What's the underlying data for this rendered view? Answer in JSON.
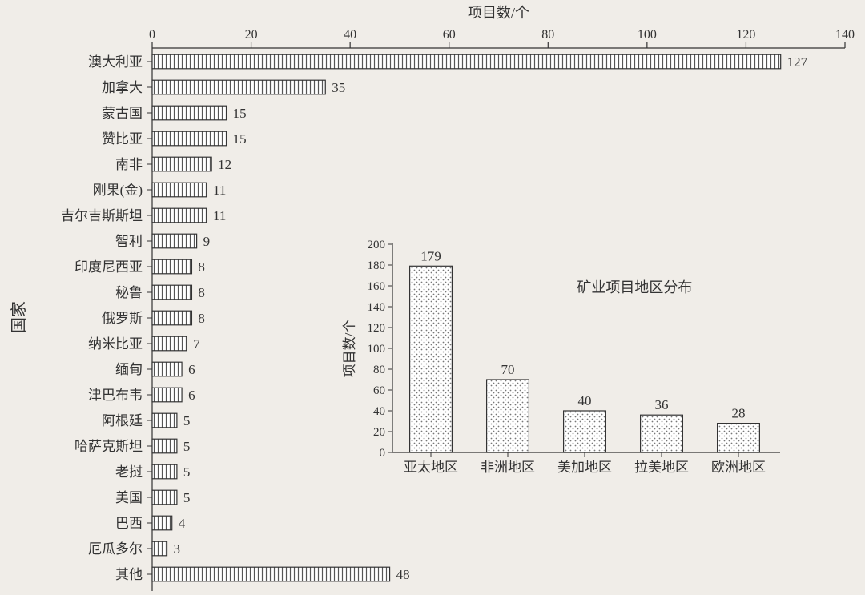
{
  "main_chart": {
    "type": "bar-horizontal",
    "xlabel": "项目数/个",
    "ylabel": "国家",
    "xlim": [
      0,
      140
    ],
    "xtick_step": 20,
    "xticks": [
      0,
      20,
      40,
      60,
      80,
      100,
      120,
      140
    ],
    "categories": [
      "澳大利亚",
      "加拿大",
      "蒙古国",
      "赞比亚",
      "南非",
      "刚果(金)",
      "吉尔吉斯斯坦",
      "智利",
      "印度尼西亚",
      "秘鲁",
      "俄罗斯",
      "纳米比亚",
      "缅甸",
      "津巴布韦",
      "阿根廷",
      "哈萨克斯坦",
      "老挝",
      "美国",
      "巴西",
      "厄瓜多尔",
      "其他"
    ],
    "values": [
      127,
      35,
      15,
      15,
      12,
      11,
      11,
      9,
      8,
      8,
      8,
      7,
      6,
      6,
      5,
      5,
      5,
      5,
      4,
      3,
      48
    ],
    "bar_pattern": "vertical-hatch",
    "bar_border_color": "#333333",
    "bar_fill_color": "#ffffff",
    "hatch_color": "#555555",
    "background_color": "#f0ede8",
    "axis_color": "#333333",
    "text_color": "#333333",
    "label_fontsize": 18,
    "tick_fontsize": 16,
    "value_fontsize": 17,
    "bar_height_ratio": 0.55
  },
  "inset_chart": {
    "type": "bar-vertical",
    "title": "矿业项目地区分布",
    "ylabel": "项目数/个",
    "ylim": [
      0,
      200
    ],
    "ytick_step": 20,
    "yticks": [
      0,
      20,
      40,
      60,
      80,
      100,
      120,
      140,
      160,
      180,
      200
    ],
    "categories": [
      "亚太地区",
      "非洲地区",
      "美加地区",
      "拉美地区",
      "欧洲地区"
    ],
    "values": [
      179,
      70,
      40,
      36,
      28
    ],
    "bar_pattern": "dots",
    "bar_border_color": "#333333",
    "bar_fill_color": "#ffffff",
    "dot_color": "#777777",
    "background_color": "#f0ede8",
    "axis_color": "#333333",
    "text_color": "#333333",
    "title_fontsize": 18,
    "label_fontsize": 17,
    "tick_fontsize": 15,
    "value_fontsize": 17,
    "bar_width_ratio": 0.55
  }
}
